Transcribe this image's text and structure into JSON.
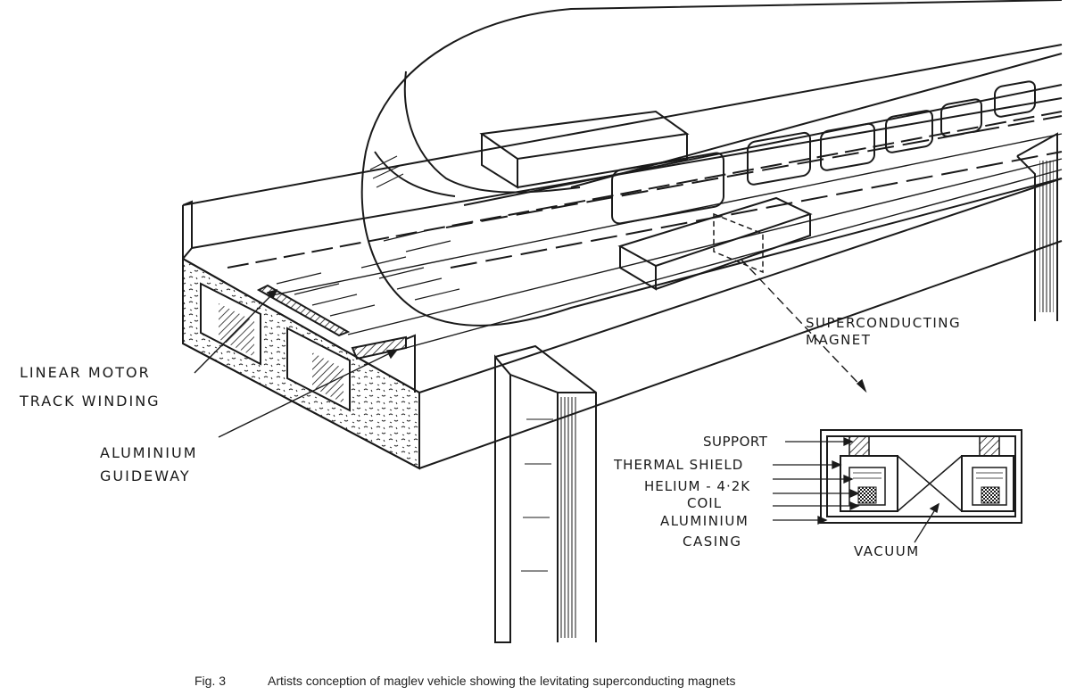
{
  "labels": {
    "linear_motor_line1": "LINEAR MOTOR",
    "linear_motor_line2": "TRACK WINDING",
    "aluminium_guideway_line1": "ALUMINIUM",
    "aluminium_guideway_line2": "GUIDEWAY",
    "superconducting_magnet_line1": "SUPERCONDUCTING",
    "superconducting_magnet_line2": "MAGNET",
    "support": "SUPPORT",
    "thermal_shield": "THERMAL SHIELD",
    "helium": "HELIUM - 4·2K",
    "coil": "COIL",
    "aluminium_casing_line1": "ALUMINIUM",
    "aluminium_casing_line2": "CASING",
    "vacuum": "VACUUM"
  },
  "caption": {
    "number": "Fig. 3",
    "text": "Artists conception of maglev vehicle showing the levitating superconducting magnets"
  },
  "colors": {
    "ink": "#1a1a1a",
    "paper": "#ffffff"
  }
}
